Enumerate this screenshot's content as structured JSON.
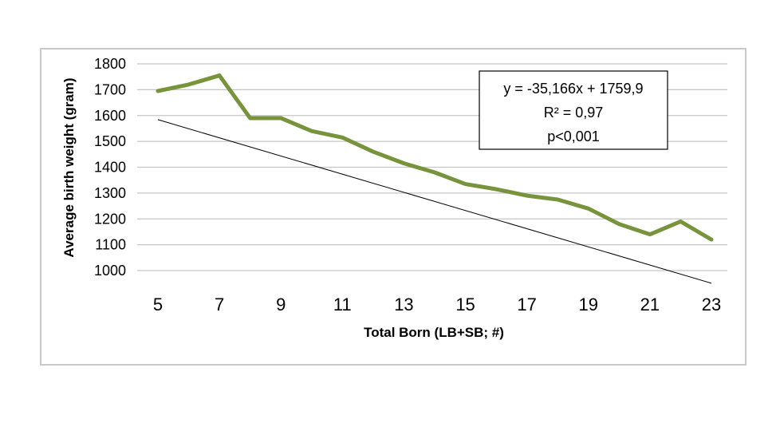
{
  "page": {
    "title": ""
  },
  "chart_data": {
    "type": "line",
    "title": "",
    "xlabel": "Total Born (LB+SB; #)",
    "ylabel": "Average birth weight (gram)",
    "xlim": [
      5,
      23
    ],
    "ylim": [
      1000,
      1800
    ],
    "x_ticks": [
      "5",
      "7",
      "9",
      "11",
      "13",
      "15",
      "17",
      "19",
      "21",
      "23"
    ],
    "y_ticks": [
      "1000",
      "1100",
      "1200",
      "1300",
      "1400",
      "1500",
      "1600",
      "1700",
      "1800"
    ],
    "grid": true,
    "series": [
      {
        "x": [
          5,
          6,
          7,
          8,
          9,
          10,
          11,
          12,
          13,
          14,
          15,
          16,
          17,
          18,
          19,
          20,
          21,
          22,
          23
        ],
        "y": [
          1695,
          1720,
          1755,
          1590,
          1590,
          1540,
          1515,
          1460,
          1415,
          1380,
          1335,
          1315,
          1290,
          1275,
          1240,
          1180,
          1140,
          1190,
          1120
        ],
        "color": "#77933c"
      }
    ],
    "trendline": {
      "slope": -35.166,
      "intercept": 1759.9,
      "x_range": [
        5,
        23
      ],
      "color": "#000000"
    },
    "annotation": {
      "lines": [
        "y = -35,166x + 1759,9",
        "R² = 0,97",
        "p<0,001"
      ]
    }
  }
}
